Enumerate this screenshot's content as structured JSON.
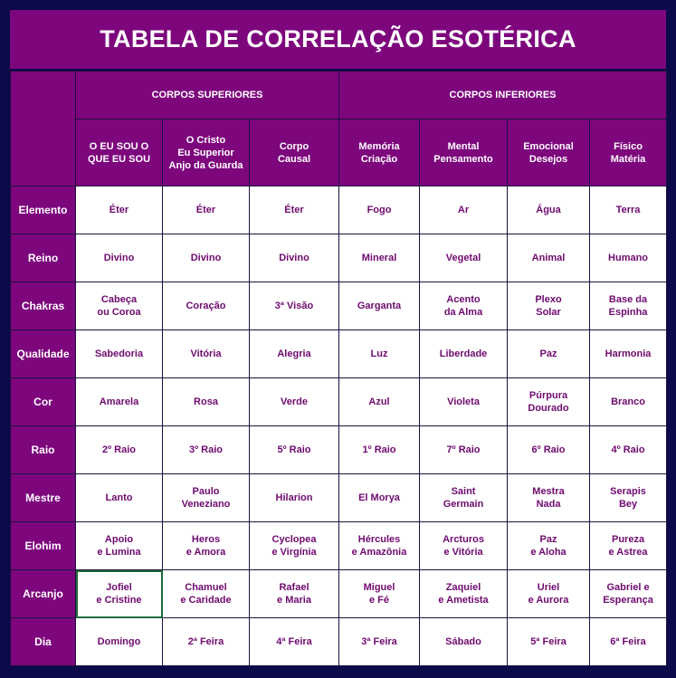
{
  "title": "TABELA DE CORRELAÇÃO ESOTÉRICA",
  "groups": {
    "superiores": "CORPOS SUPERIORES",
    "inferiores": "CORPOS INFERIORES"
  },
  "columns": [
    "O EU SOU O\nQUE EU SOU",
    "O Cristo\nEu Superior\nAnjo da Guarda",
    "Corpo\nCausal",
    "Memória\nCriação",
    "Mental\nPensamento",
    "Emocional\nDesejos",
    "Físico\nMatéria"
  ],
  "rows": [
    {
      "label": "Elemento",
      "cells": [
        "Éter",
        "Éter",
        "Éter",
        "Fogo",
        "Ar",
        "Água",
        "Terra"
      ]
    },
    {
      "label": "Reino",
      "cells": [
        "Divino",
        "Divino",
        "Divino",
        "Mineral",
        "Vegetal",
        "Animal",
        "Humano"
      ]
    },
    {
      "label": "Chakras",
      "cells": [
        "Cabeça\nou Coroa",
        "Coração",
        "3ª Visão",
        "Garganta",
        "Acento\nda Alma",
        "Plexo\nSolar",
        "Base da\nEspinha"
      ]
    },
    {
      "label": "Qualidade",
      "cells": [
        "Sabedoria",
        "Vitória",
        "Alegria",
        "Luz",
        "Liberdade",
        "Paz",
        "Harmonia"
      ]
    },
    {
      "label": "Cor",
      "cells": [
        "Amarela",
        "Rosa",
        "Verde",
        "Azul",
        "Violeta",
        "Púrpura\nDourado",
        "Branco"
      ]
    },
    {
      "label": "Raio",
      "cells": [
        "2º Raio",
        "3º Raio",
        "5º Raio",
        "1º Raio",
        "7º Raio",
        "6º Raio",
        "4º Raio"
      ]
    },
    {
      "label": "Mestre",
      "cells": [
        "Lanto",
        "Paulo\nVeneziano",
        "Hilarion",
        "El Morya",
        "Saint\nGermain",
        "Mestra\nNada",
        "Serapis\nBey"
      ]
    },
    {
      "label": "Elohim",
      "cells": [
        "Apoio\ne Lumina",
        "Heros\ne Amora",
        "Cyclopea\ne Virgínia",
        "Hércules\ne Amazônia",
        "Arcturos\ne Vitória",
        "Paz\ne Aloha",
        "Pureza\ne Astrea"
      ]
    },
    {
      "label": "Arcanjo",
      "cells": [
        "Jofiel\ne Cristine",
        "Chamuel\ne Caridade",
        "Rafael\ne Maria",
        "Miguel\ne Fé",
        "Zaquiel\ne Ametista",
        "Uriel\ne Aurora",
        "Gabriel e\nEsperança"
      ]
    },
    {
      "label": "Dia",
      "cells": [
        "Domingo",
        "2ª Feira",
        "4ª Feira",
        "3ª Feira",
        "Sábado",
        "5ª Feira",
        "6ª Feira"
      ]
    }
  ],
  "colors": {
    "background": "#0b0a4a",
    "header_purple": "#7d067d",
    "cell_text": "#6f0a6f",
    "selection": "#1e6b3a"
  }
}
